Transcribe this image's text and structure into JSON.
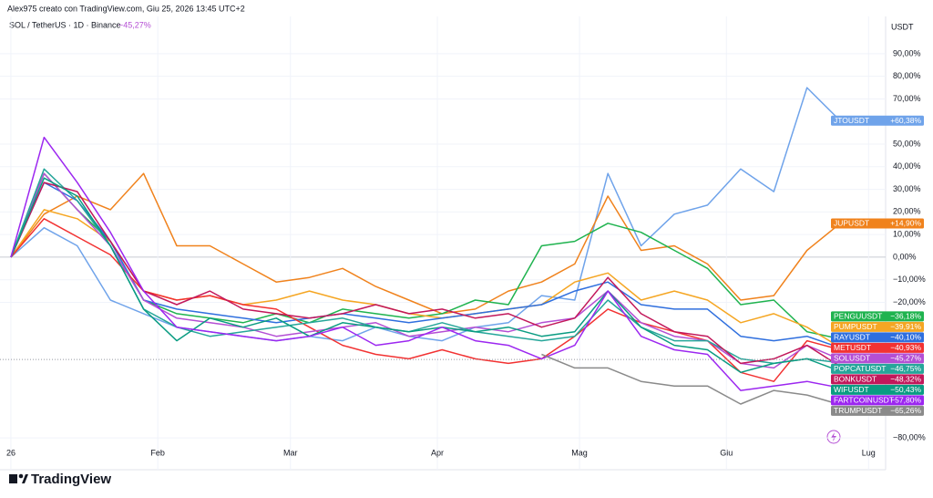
{
  "header": {
    "credit": "Alex975 creato con TradingView.com, Giu 25, 2026 13:45 UTC+2",
    "symbol": "SOL / TetherUS · 1D · Binance",
    "change": "−45,27%",
    "brand": "TradingView"
  },
  "chart_data": {
    "type": "line",
    "y_unit": "USDT",
    "grid": true,
    "x": [
      1,
      8,
      15,
      22,
      29,
      36,
      43,
      50,
      57,
      64,
      71,
      78,
      85,
      92,
      99,
      106,
      113,
      120,
      127,
      134,
      141,
      148,
      155,
      162,
      169,
      176
    ],
    "xlim": [
      -1.3,
      185.6
    ],
    "xticks": [
      {
        "value": 1,
        "label": "26"
      },
      {
        "value": 32,
        "label": "Feb"
      },
      {
        "value": 60,
        "label": "Mar"
      },
      {
        "value": 91,
        "label": "Apr"
      },
      {
        "value": 121,
        "label": "Mag"
      },
      {
        "value": 152,
        "label": "Giu"
      },
      {
        "value": 182,
        "label": "Lug"
      }
    ],
    "ylim": [
      -88,
      106.5
    ],
    "yticks": [
      {
        "value": 90,
        "label": "90,00%"
      },
      {
        "value": 80,
        "label": "80,00%"
      },
      {
        "value": 70,
        "label": "70,00%"
      },
      {
        "value": 50,
        "label": "50,00%"
      },
      {
        "value": 40,
        "label": "40,00%"
      },
      {
        "value": 30,
        "label": "30,00%"
      },
      {
        "value": 20,
        "label": "20,00%"
      },
      {
        "value": 10,
        "label": "10,00%"
      },
      {
        "value": 0,
        "label": "0,00%"
      },
      {
        "value": -10,
        "label": "−10,00%"
      },
      {
        "value": -20,
        "label": "−20,00%"
      },
      {
        "value": -80,
        "label": "−80,00%"
      }
    ],
    "series": [
      {
        "name": "JTOUSDT",
        "color": "#6fa3ea",
        "values": [
          0,
          13,
          5,
          -19,
          -25,
          -31,
          -33,
          -35,
          -37,
          -35,
          -37,
          -31,
          -35,
          -37,
          -31,
          -29,
          -17,
          -19,
          37,
          5,
          19,
          23,
          39,
          29,
          75,
          60.38
        ],
        "value_labels": [
          null,
          null,
          null,
          null,
          null,
          null,
          null,
          null,
          null,
          null,
          null,
          null,
          null,
          null,
          null,
          null,
          null,
          null,
          null,
          null,
          null,
          null,
          null,
          null,
          null,
          "+60,38%"
        ]
      },
      {
        "name": "JUPUSDT",
        "color": "#f0821c",
        "values": [
          0,
          19,
          27,
          21,
          37,
          5,
          5,
          -3,
          -11,
          -9,
          -5,
          -13,
          -19,
          -25,
          -23,
          -15,
          -11,
          -3,
          27,
          3,
          5,
          -3,
          -19,
          -17,
          3,
          14.9
        ],
        "value_labels": [
          null,
          null,
          null,
          null,
          null,
          null,
          null,
          null,
          null,
          null,
          null,
          null,
          null,
          null,
          null,
          null,
          null,
          null,
          null,
          null,
          null,
          null,
          null,
          null,
          null,
          "+14,90%"
        ]
      },
      {
        "name": "PENGUUSDT",
        "color": "#1fb34f",
        "values": [
          0,
          37,
          21,
          7,
          -19,
          -25,
          -27,
          -29,
          -25,
          -29,
          -23,
          -25,
          -27,
          -25,
          -19,
          -21,
          5,
          7,
          15,
          11,
          3,
          -5,
          -21,
          -19,
          -33,
          -36.18
        ],
        "value_labels": [
          null,
          null,
          null,
          null,
          null,
          null,
          null,
          null,
          null,
          null,
          null,
          null,
          null,
          null,
          null,
          null,
          null,
          null,
          null,
          null,
          null,
          null,
          null,
          null,
          null,
          "−36,18%"
        ]
      },
      {
        "name": "PUMPUSDT",
        "color": "#f5a623",
        "values": [
          0,
          21,
          17,
          7,
          -15,
          -19,
          -17,
          -21,
          -19,
          -15,
          -19,
          -21,
          -25,
          -27,
          -25,
          -23,
          -21,
          -11,
          -7,
          -19,
          -15,
          -19,
          -29,
          -25,
          -31,
          -39.91
        ],
        "value_labels": [
          null,
          null,
          null,
          null,
          null,
          null,
          null,
          null,
          null,
          null,
          null,
          null,
          null,
          null,
          null,
          null,
          null,
          null,
          null,
          null,
          null,
          null,
          null,
          null,
          null,
          "−39,91%"
        ]
      },
      {
        "name": "RAYUSDT",
        "color": "#2f6fde",
        "values": [
          0,
          33,
          25,
          7,
          -19,
          -23,
          -25,
          -27,
          -29,
          -27,
          -25,
          -27,
          -29,
          -27,
          -25,
          -23,
          -21,
          -15,
          -11,
          -21,
          -23,
          -23,
          -35,
          -37,
          -35,
          -40.1
        ],
        "value_labels": [
          null,
          null,
          null,
          null,
          null,
          null,
          null,
          null,
          null,
          null,
          null,
          null,
          null,
          null,
          null,
          null,
          null,
          null,
          null,
          null,
          null,
          null,
          null,
          null,
          null,
          "−40,10%"
        ]
      },
      {
        "name": "METUSDT",
        "color": "#f23232",
        "values": [
          0,
          17,
          9,
          1,
          -15,
          -19,
          -17,
          -21,
          -23,
          -31,
          -39,
          -43,
          -45,
          -41,
          -45,
          -47,
          -45,
          -35,
          -23,
          -29,
          -33,
          -37,
          -51,
          -55,
          -37,
          -40.93
        ],
        "value_labels": [
          null,
          null,
          null,
          null,
          null,
          null,
          null,
          null,
          null,
          null,
          null,
          null,
          null,
          null,
          null,
          null,
          null,
          null,
          null,
          null,
          null,
          null,
          null,
          null,
          null,
          "−40,93%"
        ]
      },
      {
        "name": "SOLUSDT",
        "color": "#b44fd4",
        "values": [
          0,
          37,
          21,
          5,
          -19,
          -27,
          -29,
          -31,
          -35,
          -33,
          -31,
          -29,
          -35,
          -33,
          -31,
          -33,
          -29,
          -27,
          -15,
          -29,
          -35,
          -37,
          -47,
          -49,
          -39,
          -45.27
        ],
        "value_labels": [
          null,
          null,
          null,
          null,
          null,
          null,
          null,
          null,
          null,
          null,
          null,
          null,
          null,
          null,
          null,
          null,
          null,
          null,
          null,
          null,
          null,
          null,
          null,
          null,
          null,
          "−45,27%"
        ]
      },
      {
        "name": "POPCATUSDT",
        "color": "#26a69a",
        "values": [
          0,
          39,
          25,
          5,
          -23,
          -31,
          -35,
          -33,
          -31,
          -29,
          -27,
          -31,
          -33,
          -29,
          -33,
          -35,
          -37,
          -35,
          -19,
          -31,
          -37,
          -37,
          -45,
          -47,
          -45,
          -46.75
        ],
        "value_labels": [
          null,
          null,
          null,
          null,
          null,
          null,
          null,
          null,
          null,
          null,
          null,
          null,
          null,
          null,
          null,
          null,
          null,
          null,
          null,
          null,
          null,
          null,
          null,
          null,
          null,
          "−46,75%"
        ]
      },
      {
        "name": "BONKUSDT",
        "color": "#c2185b",
        "values": [
          0,
          33,
          29,
          7,
          -15,
          -21,
          -15,
          -23,
          -25,
          -27,
          -25,
          -21,
          -25,
          -23,
          -27,
          -25,
          -31,
          -27,
          -9,
          -25,
          -33,
          -35,
          -47,
          -45,
          -39,
          -48.32
        ],
        "value_labels": [
          null,
          null,
          null,
          null,
          null,
          null,
          null,
          null,
          null,
          null,
          null,
          null,
          null,
          null,
          null,
          null,
          null,
          null,
          null,
          null,
          null,
          null,
          null,
          null,
          null,
          "−48,32%"
        ]
      },
      {
        "name": "WIFUSDT",
        "color": "#0a9c82",
        "values": [
          0,
          35,
          27,
          5,
          -23,
          -37,
          -27,
          -31,
          -27,
          -35,
          -29,
          -31,
          -33,
          -31,
          -33,
          -31,
          -35,
          -33,
          -15,
          -31,
          -39,
          -41,
          -51,
          -47,
          -45,
          -50.43
        ],
        "value_labels": [
          null,
          null,
          null,
          null,
          null,
          null,
          null,
          null,
          null,
          null,
          null,
          null,
          null,
          null,
          null,
          null,
          null,
          null,
          null,
          null,
          null,
          null,
          null,
          null,
          null,
          "−50,43%"
        ]
      },
      {
        "name": "FARTCOINUSDT",
        "color": "#9c27f0",
        "values": [
          0,
          53,
          33,
          11,
          -15,
          -31,
          -33,
          -35,
          -37,
          -35,
          -31,
          -39,
          -37,
          -31,
          -37,
          -39,
          -45,
          -39,
          -15,
          -35,
          -41,
          -43,
          -59,
          -57,
          -55,
          -57.8
        ],
        "value_labels": [
          null,
          null,
          null,
          null,
          null,
          null,
          null,
          null,
          null,
          null,
          null,
          null,
          null,
          null,
          null,
          null,
          null,
          null,
          null,
          null,
          null,
          null,
          null,
          null,
          null,
          "−57,80%"
        ]
      },
      {
        "name": "TRUMPUSDT",
        "color": "#8a8a8a",
        "values": [
          null,
          null,
          null,
          null,
          null,
          null,
          null,
          null,
          null,
          null,
          null,
          null,
          null,
          null,
          null,
          null,
          -43,
          -49,
          -49,
          -55,
          -57,
          -57,
          -65,
          -59,
          -61,
          -65.26
        ],
        "value_labels": [
          null,
          null,
          null,
          null,
          null,
          null,
          null,
          null,
          null,
          null,
          null,
          null,
          null,
          null,
          null,
          null,
          null,
          null,
          null,
          null,
          null,
          null,
          null,
          null,
          null,
          "−65,26%"
        ]
      }
    ]
  }
}
